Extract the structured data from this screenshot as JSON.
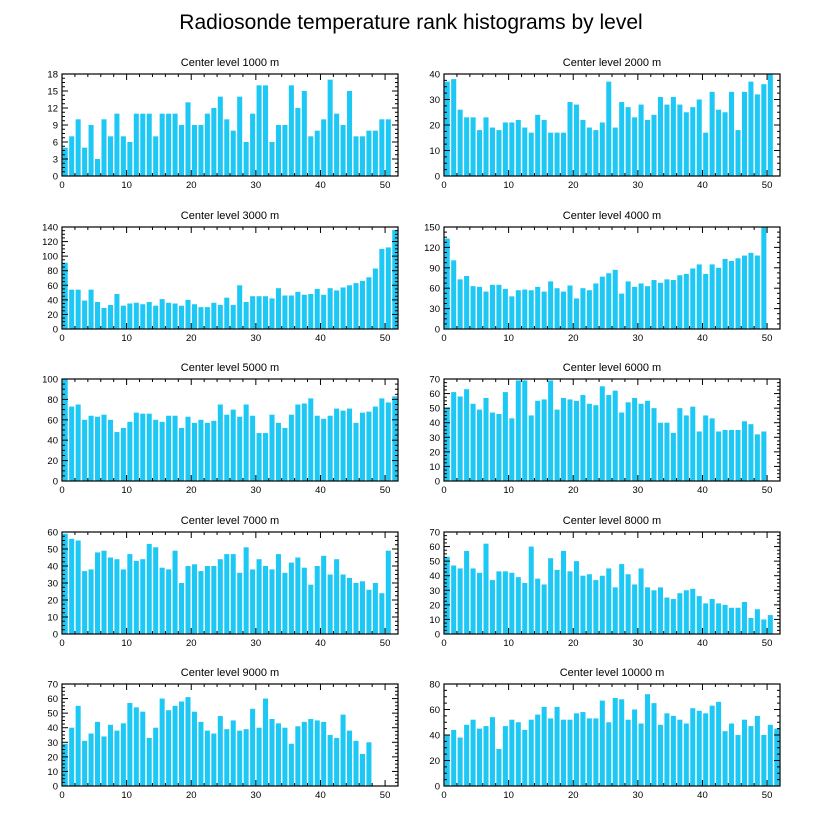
{
  "title": "Radiosonde temperature rank histograms by level",
  "bar_color": "#1ec8f5",
  "chart_data": [
    {
      "type": "bar",
      "title": "Center level 1000 m",
      "xlim": [
        0,
        52
      ],
      "ylim": [
        0,
        18
      ],
      "xticks": [
        0,
        10,
        20,
        30,
        40,
        50
      ],
      "yticks": [
        0,
        3,
        6,
        9,
        12,
        15,
        18
      ],
      "values": [
        5,
        7,
        10,
        5,
        9,
        3,
        10,
        7,
        11,
        7,
        6,
        11,
        11,
        11,
        7,
        11,
        11,
        11,
        9,
        13,
        9,
        9,
        11,
        12,
        14,
        10,
        8,
        14,
        6,
        11,
        16,
        16,
        6,
        9,
        9,
        16,
        12,
        15,
        7,
        8,
        10,
        17,
        11,
        9,
        15,
        7,
        7,
        8,
        8,
        10,
        10
      ]
    },
    {
      "type": "bar",
      "title": "Center level 2000 m",
      "xlim": [
        0,
        52
      ],
      "ylim": [
        0,
        40
      ],
      "xticks": [
        0,
        10,
        20,
        30,
        40,
        50
      ],
      "yticks": [
        0,
        10,
        20,
        30,
        40
      ],
      "values": [
        37,
        38,
        26,
        23,
        23,
        18,
        23,
        19,
        18,
        21,
        21,
        22,
        19,
        17,
        24,
        22,
        17,
        17,
        17,
        29,
        28,
        22,
        19,
        18,
        21,
        37,
        19,
        29,
        27,
        23,
        28,
        22,
        24,
        31,
        28,
        31,
        28,
        25,
        27,
        30,
        17,
        33,
        26,
        25,
        33,
        18,
        33,
        37,
        32,
        36,
        40
      ]
    },
    {
      "type": "bar",
      "title": "Center level 3000 m",
      "xlim": [
        0,
        52
      ],
      "ylim": [
        0,
        140
      ],
      "xticks": [
        0,
        10,
        20,
        30,
        40,
        50
      ],
      "yticks": [
        0,
        20,
        40,
        60,
        80,
        100,
        120,
        140
      ],
      "values": [
        91,
        54,
        54,
        39,
        54,
        37,
        29,
        33,
        48,
        32,
        35,
        36,
        34,
        37,
        32,
        41,
        36,
        35,
        32,
        40,
        34,
        30,
        30,
        36,
        33,
        43,
        33,
        60,
        37,
        45,
        45,
        45,
        42,
        56,
        46,
        46,
        51,
        47,
        48,
        55,
        47,
        56,
        53,
        57,
        60,
        63,
        66,
        71,
        83,
        110,
        112,
        136
      ]
    },
    {
      "type": "bar",
      "title": "Center level 4000 m",
      "xlim": [
        0,
        52
      ],
      "ylim": [
        0,
        150
      ],
      "xticks": [
        0,
        10,
        20,
        30,
        40,
        50
      ],
      "yticks": [
        0,
        30,
        60,
        90,
        120,
        150
      ],
      "values": [
        133,
        101,
        73,
        78,
        63,
        62,
        55,
        65,
        65,
        59,
        48,
        57,
        58,
        57,
        62,
        55,
        70,
        60,
        55,
        64,
        45,
        60,
        57,
        67,
        77,
        82,
        87,
        52,
        70,
        62,
        67,
        63,
        72,
        68,
        73,
        72,
        79,
        81,
        89,
        95,
        81,
        95,
        90,
        103,
        100,
        104,
        108,
        112,
        108,
        150,
        0
      ]
    },
    {
      "type": "bar",
      "title": "Center level 5000 m",
      "xlim": [
        0,
        52
      ],
      "ylim": [
        0,
        100
      ],
      "xticks": [
        0,
        10,
        20,
        30,
        40,
        50
      ],
      "yticks": [
        0,
        20,
        40,
        60,
        80,
        100
      ],
      "values": [
        101,
        73,
        75,
        60,
        64,
        63,
        65,
        60,
        48,
        52,
        58,
        67,
        66,
        66,
        60,
        58,
        64,
        64,
        52,
        63,
        57,
        60,
        57,
        59,
        75,
        65,
        70,
        63,
        75,
        64,
        47,
        47,
        65,
        57,
        52,
        65,
        75,
        76,
        81,
        64,
        61,
        64,
        71,
        69,
        71,
        57,
        67,
        68,
        73,
        81,
        77,
        83
      ]
    },
    {
      "type": "bar",
      "title": "Center level 6000 m",
      "xlim": [
        0,
        52
      ],
      "ylim": [
        0,
        70
      ],
      "xticks": [
        0,
        10,
        20,
        30,
        40,
        50
      ],
      "yticks": [
        0,
        10,
        20,
        30,
        40,
        50,
        60,
        70
      ],
      "values": [
        50,
        61,
        58,
        63,
        53,
        49,
        57,
        47,
        46,
        61,
        43,
        69,
        69,
        45,
        55,
        56,
        69,
        49,
        57,
        56,
        55,
        59,
        53,
        52,
        65,
        59,
        62,
        47,
        54,
        57,
        53,
        55,
        50,
        40,
        40,
        33,
        50,
        45,
        51,
        34,
        45,
        43,
        34,
        35,
        35,
        35,
        41,
        39,
        32,
        34
      ]
    },
    {
      "type": "bar",
      "title": "Center level 7000 m",
      "xlim": [
        0,
        52
      ],
      "ylim": [
        0,
        60
      ],
      "xticks": [
        0,
        10,
        20,
        30,
        40,
        50
      ],
      "yticks": [
        0,
        10,
        20,
        30,
        40,
        50,
        60
      ],
      "values": [
        59,
        56,
        55,
        37,
        38,
        48,
        49,
        45,
        44,
        38,
        47,
        43,
        44,
        53,
        51,
        39,
        38,
        49,
        30,
        40,
        41,
        37,
        40,
        40,
        44,
        47,
        47,
        36,
        51,
        38,
        44,
        40,
        38,
        47,
        36,
        42,
        45,
        39,
        29,
        40,
        46,
        35,
        44,
        35,
        33,
        30,
        31,
        26,
        30,
        24,
        49
      ]
    },
    {
      "type": "bar",
      "title": "Center level 8000 m",
      "xlim": [
        0,
        52
      ],
      "ylim": [
        0,
        70
      ],
      "xticks": [
        0,
        10,
        20,
        30,
        40,
        50
      ],
      "yticks": [
        0,
        10,
        20,
        30,
        40,
        50,
        60,
        70
      ],
      "values": [
        53,
        47,
        45,
        57,
        45,
        42,
        62,
        37,
        43,
        43,
        42,
        39,
        35,
        60,
        38,
        34,
        52,
        44,
        57,
        43,
        50,
        40,
        41,
        37,
        40,
        45,
        32,
        48,
        41,
        34,
        45,
        32,
        30,
        32,
        25,
        24,
        28,
        30,
        31,
        26,
        21,
        24,
        21,
        20,
        18,
        18,
        22,
        11,
        17,
        10,
        13
      ]
    },
    {
      "type": "bar",
      "title": "Center level 9000 m",
      "xlim": [
        0,
        52
      ],
      "ylim": [
        0,
        70
      ],
      "xticks": [
        0,
        10,
        20,
        30,
        40,
        50
      ],
      "yticks": [
        0,
        10,
        20,
        30,
        40,
        50,
        60,
        70
      ],
      "values": [
        29,
        40,
        55,
        31,
        36,
        44,
        34,
        42,
        38,
        43,
        57,
        54,
        51,
        33,
        40,
        60,
        52,
        55,
        58,
        61,
        51,
        44,
        38,
        36,
        48,
        39,
        45,
        38,
        39,
        53,
        40,
        60,
        46,
        43,
        40,
        29,
        41,
        44,
        46,
        45,
        44,
        35,
        33,
        49,
        38,
        31,
        22,
        30
      ]
    },
    {
      "type": "bar",
      "title": "Center level 10000 m",
      "xlim": [
        0,
        52
      ],
      "ylim": [
        0,
        80
      ],
      "xticks": [
        0,
        10,
        20,
        30,
        40,
        50
      ],
      "yticks": [
        0,
        20,
        40,
        60,
        80
      ],
      "values": [
        40,
        44,
        38,
        48,
        52,
        45,
        47,
        54,
        29,
        47,
        52,
        50,
        44,
        52,
        56,
        62,
        53,
        62,
        52,
        52,
        57,
        58,
        53,
        53,
        67,
        50,
        69,
        68,
        52,
        60,
        49,
        72,
        65,
        48,
        57,
        55,
        52,
        49,
        61,
        59,
        57,
        63,
        66,
        43,
        49,
        40,
        52,
        47,
        55,
        40,
        48,
        45
      ]
    }
  ]
}
